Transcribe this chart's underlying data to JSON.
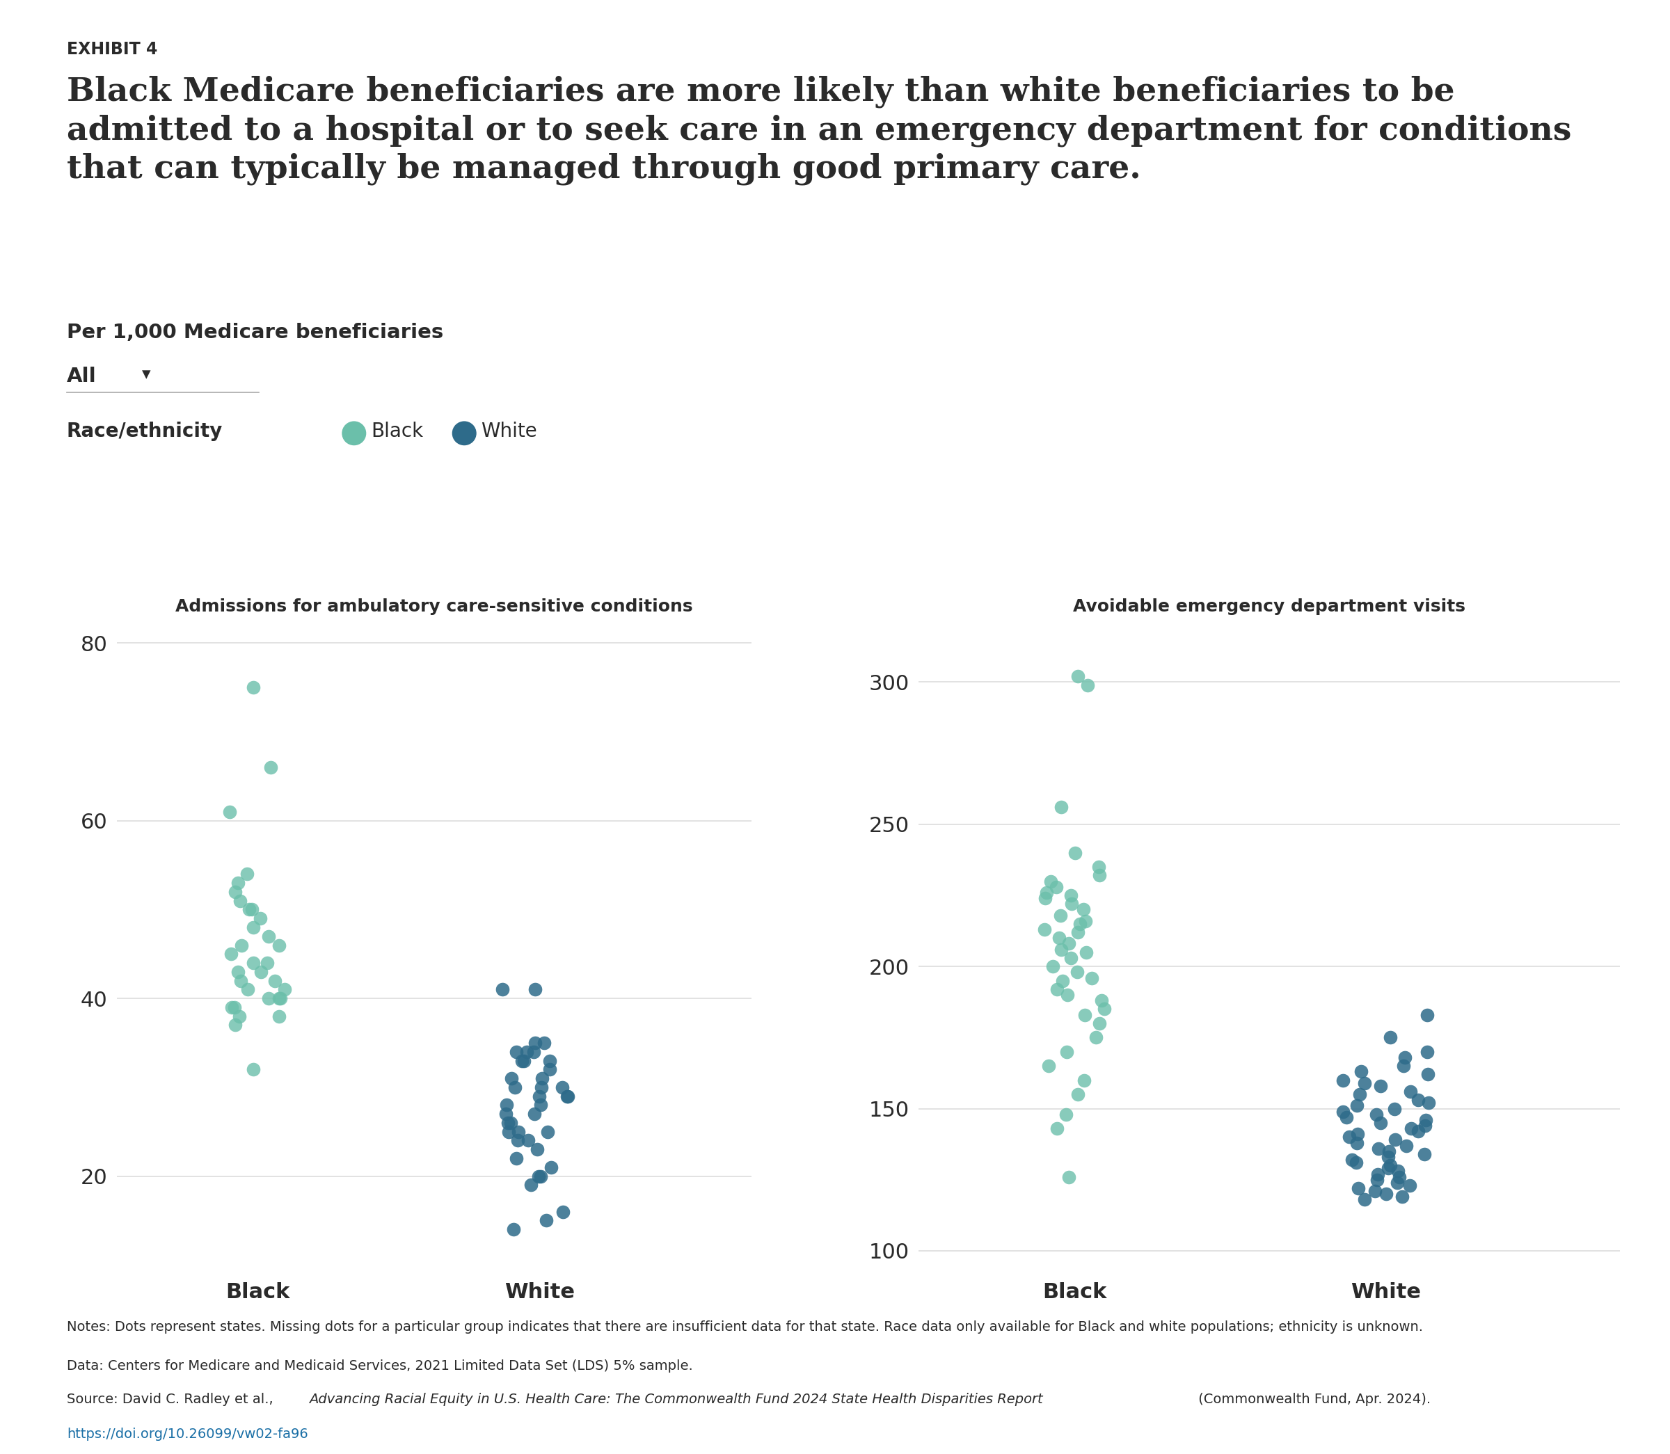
{
  "exhibit_label": "EXHIBIT 4",
  "title": "Black Medicare beneficiaries are more likely than white beneficiaries to be\nadmitted to a hospital or to seek care in an emergency department for conditions\nthat can typically be managed through good primary care.",
  "subtitle": "Per 1,000 Medicare beneficiaries",
  "filter_label": "All",
  "legend_label": "Race/ethnicity",
  "legend_black_label": "Black",
  "legend_white_label": "White",
  "black_color": "#6bbfaa",
  "white_color": "#2e6b8a",
  "chart1_title": "Admissions for ambulatory care-sensitive conditions",
  "chart2_title": "Avoidable emergency department visits",
  "chart1_ylim": [
    10,
    82
  ],
  "chart1_yticks": [
    20,
    40,
    60,
    80
  ],
  "chart2_ylim": [
    95,
    320
  ],
  "chart2_yticks": [
    100,
    150,
    200,
    250,
    300
  ],
  "black_admissions": [
    75,
    66,
    61,
    54,
    53,
    52,
    51,
    50,
    50,
    49,
    48,
    47,
    46,
    46,
    45,
    44,
    44,
    43,
    43,
    42,
    42,
    41,
    41,
    40,
    40,
    40,
    39,
    39,
    38,
    38,
    37,
    32
  ],
  "white_admissions": [
    41,
    41,
    35,
    35,
    34,
    34,
    34,
    33,
    33,
    33,
    32,
    31,
    31,
    30,
    30,
    30,
    29,
    29,
    29,
    28,
    28,
    27,
    27,
    26,
    26,
    25,
    25,
    25,
    24,
    24,
    23,
    22,
    21,
    20,
    20,
    19,
    16,
    15,
    14
  ],
  "black_ed": [
    302,
    299,
    256,
    240,
    235,
    232,
    230,
    228,
    226,
    225,
    224,
    222,
    220,
    218,
    216,
    215,
    213,
    212,
    210,
    208,
    206,
    205,
    203,
    200,
    198,
    196,
    195,
    192,
    190,
    188,
    185,
    183,
    180,
    175,
    170,
    165,
    160,
    155,
    148,
    143,
    126
  ],
  "white_ed": [
    183,
    175,
    170,
    168,
    165,
    163,
    162,
    160,
    159,
    158,
    156,
    155,
    153,
    152,
    151,
    150,
    149,
    148,
    147,
    146,
    145,
    144,
    143,
    142,
    141,
    140,
    139,
    138,
    137,
    136,
    135,
    134,
    133,
    132,
    131,
    130,
    129,
    128,
    127,
    126,
    125,
    124,
    123,
    122,
    121,
    120,
    119,
    118
  ],
  "notes": "Notes: Dots represent states. Missing dots for a particular group indicates that there are insufficient data for that state. Race data only available for Black and white populations; ethnicity is unknown.",
  "data_source": "Data: Centers for Medicare and Medicaid Services, 2021 Limited Data Set (LDS) 5% sample.",
  "source_plain": "Source: David C. Radley et al., ",
  "source_italic": "Advancing Racial Equity in U.S. Health Care: The Commonwealth Fund 2024 State Health Disparities Report",
  "source_end": " (Commonwealth Fund, Apr. 2024).",
  "source_url": "https://doi.org/10.26099/vw02-fa96",
  "background_color": "#ffffff",
  "grid_color": "#dddddd",
  "text_color": "#2a2a2a",
  "axis_spine_color": "#cccccc"
}
